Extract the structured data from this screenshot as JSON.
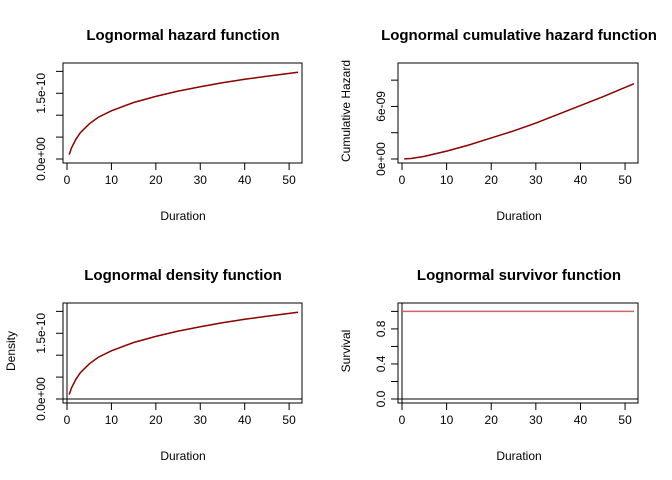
{
  "colors": {
    "curve": "#8b0000",
    "lightcurve": "#cc6666"
  },
  "chart_data": [
    {
      "type": "line",
      "title": "Lognormal hazard function",
      "xlabel": "Duration",
      "ylabel": "",
      "xlim": [
        0,
        52
      ],
      "ylim": [
        0,
        2.1e-10
      ],
      "xticks": [
        0,
        10,
        20,
        30,
        40,
        50
      ],
      "xtick_labels": [
        "0",
        "10",
        "20",
        "30",
        "40",
        "50"
      ],
      "yticks": [
        0,
        5e-11,
        1e-10,
        1.5e-10,
        2e-10
      ],
      "ytick_labels": [
        "0.0e+00",
        "",
        "",
        "1.5e-10",
        ""
      ],
      "x": [
        0.5,
        1,
        2,
        3,
        5,
        7,
        10,
        15,
        20,
        25,
        30,
        35,
        40,
        45,
        52
      ],
      "y": [
        1e-11,
        2.5e-11,
        4.5e-11,
        6e-11,
        8e-11,
        9.5e-11,
        1.1e-10,
        1.29e-10,
        1.43e-10,
        1.55e-10,
        1.65e-10,
        1.74e-10,
        1.82e-10,
        1.89e-10,
        1.98e-10
      ],
      "axes_cross_zero": false
    },
    {
      "type": "line",
      "title": "Lognormal cumulative hazard function",
      "xlabel": "Duration",
      "ylabel": "Cumulative Hazard",
      "xlim": [
        0,
        52
      ],
      "ylim": [
        0,
        1.05e-08
      ],
      "xticks": [
        0,
        10,
        20,
        30,
        40,
        50
      ],
      "xtick_labels": [
        "0",
        "10",
        "20",
        "30",
        "40",
        "50"
      ],
      "yticks": [
        0,
        3e-09,
        6e-09,
        9e-09
      ],
      "ytick_labels": [
        "0e+00",
        "",
        "6e-09",
        ""
      ],
      "x": [
        0.5,
        2,
        5,
        10,
        15,
        20,
        25,
        30,
        35,
        40,
        45,
        52
      ],
      "y": [
        1e-11,
        6e-11,
        3e-10,
        9e-10,
        1.6e-09,
        2.4e-09,
        3.2e-09,
        4.1e-09,
        5.1e-09,
        6.1e-09,
        7.1e-09,
        8.6e-09
      ],
      "axes_cross_zero": false
    },
    {
      "type": "line",
      "title": "Lognormal density function",
      "xlabel": "Duration",
      "ylabel": "Density",
      "xlim": [
        0,
        52
      ],
      "ylim": [
        0,
        2.1e-10
      ],
      "xticks": [
        0,
        10,
        20,
        30,
        40,
        50
      ],
      "xtick_labels": [
        "0",
        "10",
        "20",
        "30",
        "40",
        "50"
      ],
      "yticks": [
        0,
        5e-11,
        1e-10,
        1.5e-10,
        2e-10
      ],
      "ytick_labels": [
        "0.0e+00",
        "",
        "",
        "1.5e-10",
        ""
      ],
      "x": [
        0.5,
        1,
        2,
        3,
        5,
        7,
        10,
        15,
        20,
        25,
        30,
        35,
        40,
        45,
        52
      ],
      "y": [
        1e-11,
        2.5e-11,
        4.5e-11,
        6e-11,
        8e-11,
        9.5e-11,
        1.1e-10,
        1.29e-10,
        1.43e-10,
        1.55e-10,
        1.65e-10,
        1.74e-10,
        1.82e-10,
        1.89e-10,
        1.98e-10
      ],
      "axes_cross_zero": true
    },
    {
      "type": "line",
      "title": "Lognormal survivor function",
      "xlabel": "Duration",
      "ylabel": "Survival",
      "xlim": [
        0,
        52
      ],
      "ylim": [
        0,
        1.05
      ],
      "xticks": [
        0,
        10,
        20,
        30,
        40,
        50
      ],
      "xtick_labels": [
        "0",
        "10",
        "20",
        "30",
        "40",
        "50"
      ],
      "yticks": [
        0,
        0.2,
        0.4,
        0.6,
        0.8,
        1.0
      ],
      "ytick_labels": [
        "0.0",
        "",
        "0.4",
        "",
        "0.8",
        ""
      ],
      "x": [
        0,
        52
      ],
      "y": [
        1.0,
        1.0
      ],
      "axes_cross_zero": true
    }
  ]
}
